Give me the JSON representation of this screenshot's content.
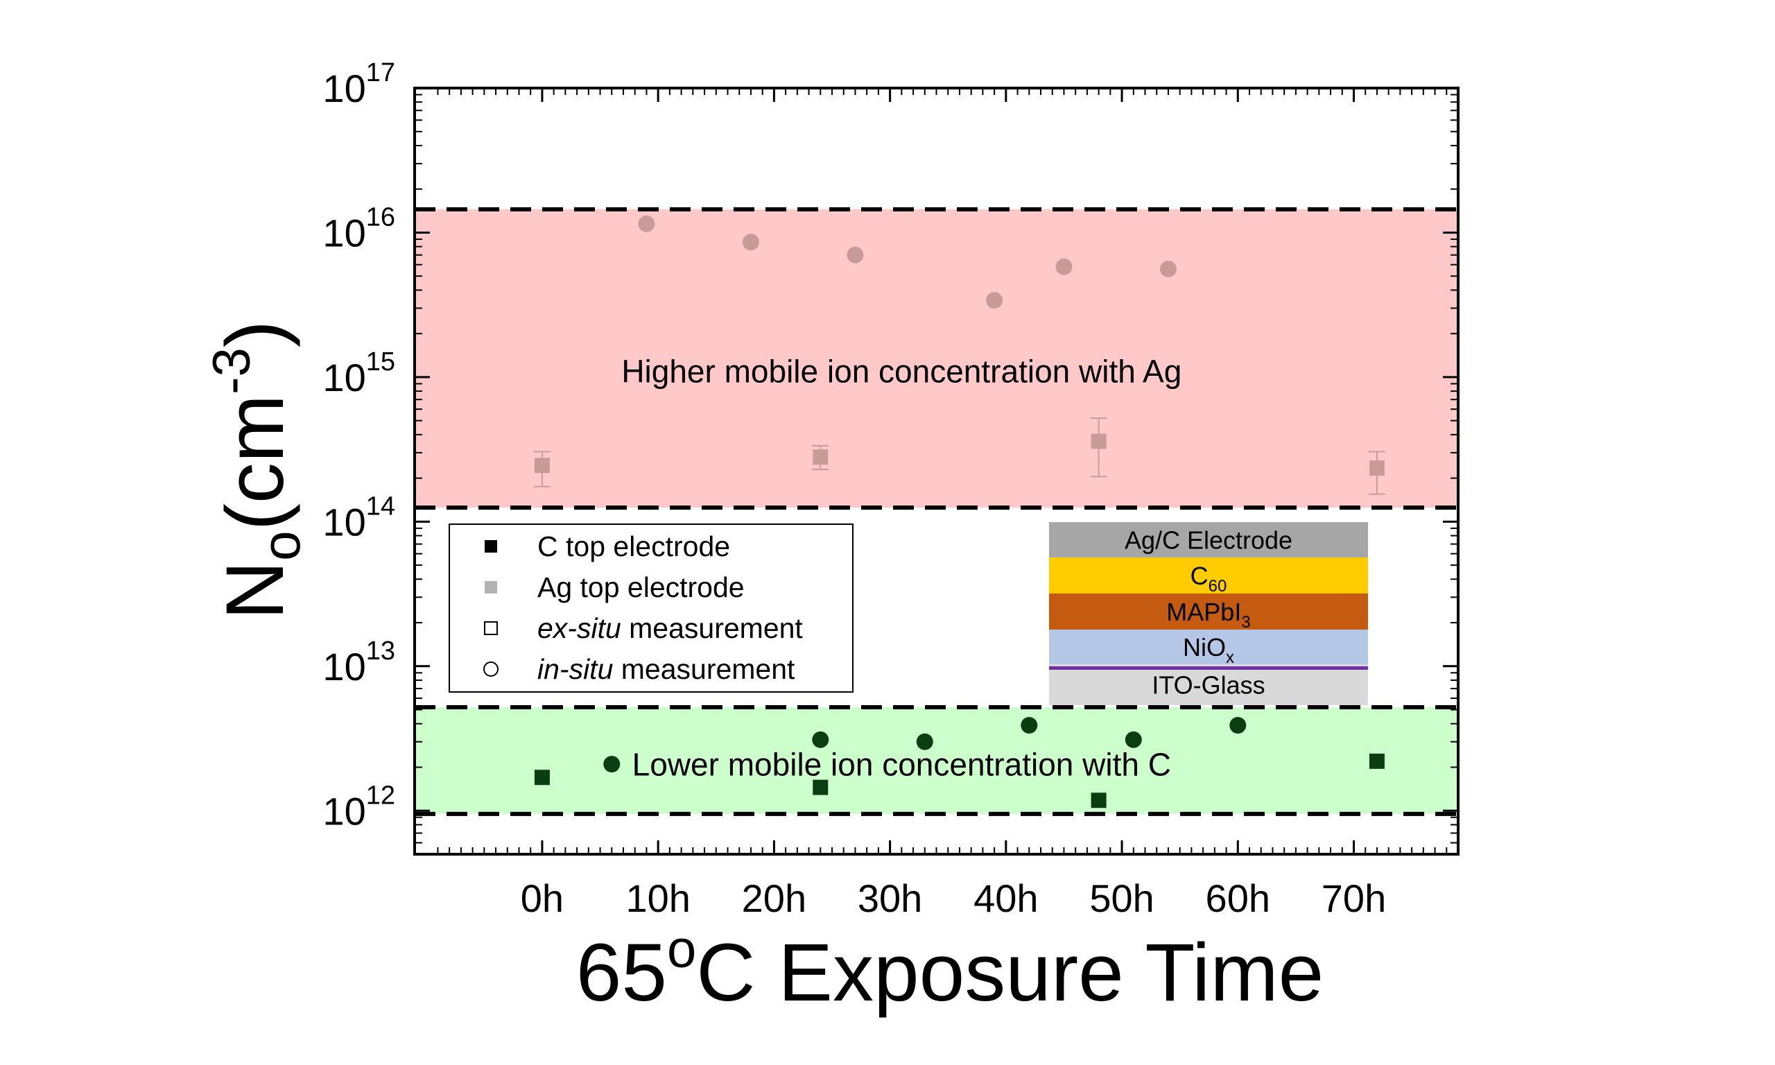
{
  "chart_data": {
    "type": "scatter",
    "xlabel": {
      "pre": "65",
      "sup": "o",
      "post": "C Exposure Time"
    },
    "ylabel": {
      "base": "N",
      "sub": "o",
      "open": "(cm",
      "sup": "-3",
      "close": ")"
    },
    "x_range": [
      -11,
      79
    ],
    "x_ticks": [
      {
        "v": 0,
        "label": "0h"
      },
      {
        "v": 10,
        "label": "10h"
      },
      {
        "v": 20,
        "label": "20h"
      },
      {
        "v": 30,
        "label": "30h"
      },
      {
        "v": 40,
        "label": "40h"
      },
      {
        "v": 50,
        "label": "50h"
      },
      {
        "v": 60,
        "label": "60h"
      },
      {
        "v": 70,
        "label": "70h"
      }
    ],
    "y_scale": "log",
    "y_range": [
      500000000000.0,
      1e+17
    ],
    "y_ticks": [
      {
        "v": 1000000000000.0,
        "base": "10",
        "exp": "12"
      },
      {
        "v": 10000000000000.0,
        "base": "10",
        "exp": "13"
      },
      {
        "v": 100000000000000.0,
        "base": "10",
        "exp": "14"
      },
      {
        "v": 1000000000000000.0,
        "base": "10",
        "exp": "15"
      },
      {
        "v": 1e+16,
        "base": "10",
        "exp": "16"
      },
      {
        "v": 1e+17,
        "base": "10",
        "exp": "17"
      }
    ],
    "bands": [
      {
        "id": "ag",
        "y_low": 125000000000000.0,
        "y_high": 1.45e+16,
        "color": "#ffc9c9",
        "label": "Higher mobile ion concentration with Ag"
      },
      {
        "id": "c",
        "y_low": 950000000000.0,
        "y_high": 5200000000000.0,
        "color": "#ccffcc",
        "label": "Lower mobile ion concentration with C"
      }
    ],
    "series": [
      {
        "name": "C top electrode",
        "marker": "square",
        "color": "#0b3d12",
        "points": [
          {
            "x": 0,
            "y": 1700000000000.0
          },
          {
            "x": 24,
            "y": 1450000000000.0
          },
          {
            "x": 48,
            "y": 1180000000000.0
          },
          {
            "x": 72,
            "y": 2200000000000.0
          }
        ]
      },
      {
        "name": "",
        "marker": "circle",
        "color": "#0b3d12",
        "points": [
          {
            "x": 6,
            "y": 2100000000000.0
          },
          {
            "x": 24,
            "y": 3100000000000.0
          },
          {
            "x": 33,
            "y": 3000000000000.0
          },
          {
            "x": 42,
            "y": 3900000000000.0
          },
          {
            "x": 51,
            "y": 3100000000000.0
          },
          {
            "x": 60,
            "y": 3900000000000.0
          }
        ]
      },
      {
        "name": "Ag top electrode",
        "marker": "square",
        "color": "#c99a9a",
        "points": [
          {
            "x": 0,
            "y": 245000000000000.0,
            "err_low": 175000000000000.0,
            "err_high": 305000000000000.0
          },
          {
            "x": 24,
            "y": 280000000000000.0,
            "err_low": 230000000000000.0,
            "err_high": 335000000000000.0
          },
          {
            "x": 48,
            "y": 360000000000000.0,
            "err_low": 205000000000000.0,
            "err_high": 520000000000000.0
          },
          {
            "x": 72,
            "y": 235000000000000.0,
            "err_low": 155000000000000.0,
            "err_high": 305000000000000.0
          }
        ]
      },
      {
        "name": "",
        "marker": "circle",
        "color": "#c99a9a",
        "points": [
          {
            "x": 9,
            "y": 1.15e+16
          },
          {
            "x": 18,
            "y": 8600000000000000.0
          },
          {
            "x": 27,
            "y": 7000000000000000.0
          },
          {
            "x": 39,
            "y": 3400000000000000.0
          },
          {
            "x": 45,
            "y": 5800000000000000.0
          },
          {
            "x": 54,
            "y": 5600000000000000.0
          }
        ]
      }
    ],
    "legend": {
      "placement": "lower-left",
      "entries": [
        {
          "marker": "filled-square",
          "color": "#000000",
          "text": "C top electrode"
        },
        {
          "marker": "filled-square",
          "color": "#b3b3b3",
          "text": "Ag top electrode"
        },
        {
          "marker": "open-square",
          "color": "#000000",
          "italic": "ex-situ",
          "text": " measurement"
        },
        {
          "marker": "open-circle",
          "color": "#000000",
          "italic": "in-situ",
          "text": " measurement"
        }
      ]
    },
    "device_stack": [
      {
        "label": "Ag/C Electrode",
        "sub": "",
        "color": "#a6a6a6"
      },
      {
        "label": "C",
        "sub": "60",
        "color": "#ffcc00"
      },
      {
        "label": "MAPbI",
        "sub": "3",
        "color": "#c55a11"
      },
      {
        "label": "NiO",
        "sub": "x",
        "color": "#b4c7e7"
      },
      {
        "label": "ITO-Glass",
        "sub": "",
        "color": "#d9d9d9"
      }
    ],
    "grid": false
  }
}
